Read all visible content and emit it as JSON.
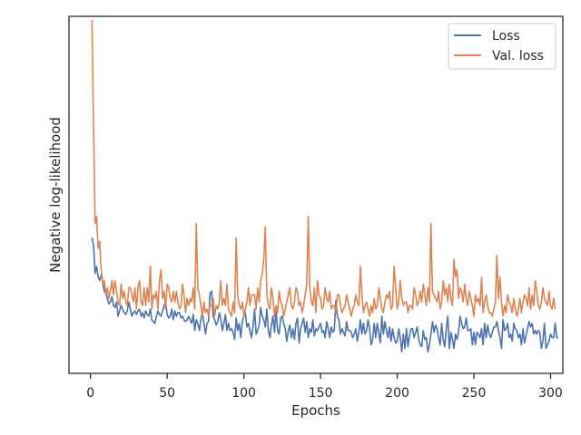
{
  "chart_data": {
    "type": "line",
    "title": "",
    "xlabel": "Epochs",
    "ylabel": "Negative log-likelihood",
    "xlim": [
      -14,
      308
    ],
    "ylim": [
      0,
      1
    ],
    "x_ticks": [
      "0",
      "50",
      "100",
      "150",
      "200",
      "250",
      "300"
    ],
    "y_ticks_shown": false,
    "grid": false,
    "legend": "top-right",
    "x_count": 293,
    "series": [
      {
        "name": "Loss",
        "color": "#4c72b0",
        "values": [
          0.38,
          0.36,
          0.28,
          0.3,
          0.27,
          0.26,
          0.275,
          0.255,
          0.23,
          0.225,
          0.21,
          0.195,
          0.2,
          0.215,
          0.19,
          0.185,
          0.2,
          0.16,
          0.175,
          0.19,
          0.18,
          0.17,
          0.165,
          0.175,
          0.2,
          0.18,
          0.16,
          0.17,
          0.175,
          0.165,
          0.175,
          0.18,
          0.16,
          0.17,
          0.155,
          0.175,
          0.165,
          0.16,
          0.18,
          0.15,
          0.145,
          0.14,
          0.16,
          0.175,
          0.165,
          0.16,
          0.175,
          0.19,
          0.2,
          0.165,
          0.155,
          0.16,
          0.18,
          0.15,
          0.175,
          0.16,
          0.17,
          0.17,
          0.155,
          0.16,
          0.15,
          0.145,
          0.15,
          0.16,
          0.15,
          0.14,
          0.165,
          0.12,
          0.15,
          0.14,
          0.12,
          0.15,
          0.17,
          0.14,
          0.11,
          0.14,
          0.145,
          0.225,
          0.23,
          0.16,
          0.15,
          0.135,
          0.145,
          0.17,
          0.15,
          0.12,
          0.14,
          0.165,
          0.12,
          0.14,
          0.12,
          0.125,
          0.115,
          0.095,
          0.155,
          0.12,
          0.14,
          0.1,
          0.145,
          0.16,
          0.17,
          0.13,
          0.14,
          0.12,
          0.1,
          0.13,
          0.18,
          0.11,
          0.12,
          0.135,
          0.185,
          0.16,
          0.15,
          0.13,
          0.18,
          0.12,
          0.1,
          0.135,
          0.16,
          0.115,
          0.18,
          0.12,
          0.11,
          0.155,
          0.16,
          0.14,
          0.125,
          0.09,
          0.12,
          0.135,
          0.1,
          0.125,
          0.095,
          0.14,
          0.155,
          0.085,
          0.125,
          0.14,
          0.155,
          0.115,
          0.145,
          0.1,
          0.125,
          0.115,
          0.15,
          0.105,
          0.125,
          0.12,
          0.13,
          0.14,
          0.115,
          0.12,
          0.1,
          0.145,
          0.125,
          0.1,
          0.13,
          0.115,
          0.12,
          0.205,
          0.16,
          0.15,
          0.11,
          0.125,
          0.115,
          0.105,
          0.145,
          0.12,
          0.12,
          0.115,
          0.1,
          0.11,
          0.125,
          0.09,
          0.115,
          0.15,
          0.11,
          0.14,
          0.11,
          0.12,
          0.15,
          0.125,
          0.08,
          0.095,
          0.14,
          0.1,
          0.14,
          0.115,
          0.085,
          0.16,
          0.11,
          0.145,
          0.12,
          0.1,
          0.13,
          0.09,
          0.125,
          0.1,
          0.085,
          0.09,
          0.125,
          0.1,
          0.06,
          0.11,
          0.07,
          0.125,
          0.075,
          0.105,
          0.125,
          0.125,
          0.1,
          0.115,
          0.13,
          0.095,
          0.08,
          0.075,
          0.12,
          0.095,
          0.1,
          0.06,
          0.08,
          0.11,
          0.145,
          0.115,
          0.135,
          0.125,
          0.1,
          0.08,
          0.14,
          0.095,
          0.075,
          0.125,
          0.16,
          0.07,
          0.115,
          0.095,
          0.07,
          0.11,
          0.095,
          0.115,
          0.16,
          0.14,
          0.125,
          0.13,
          0.155,
          0.12,
          0.12,
          0.125,
          0.08,
          0.115,
          0.08,
          0.115,
          0.11,
          0.1,
          0.125,
          0.08,
          0.14,
          0.1,
          0.135,
          0.11,
          0.1,
          0.115,
          0.13,
          0.13,
          0.145,
          0.12,
          0.1,
          0.07,
          0.15,
          0.12,
          0.125,
          0.14,
          0.1,
          0.11,
          0.09,
          0.14,
          0.125,
          0.12,
          0.1,
          0.11,
          0.08,
          0.125,
          0.085,
          0.105,
          0.125,
          0.145,
          0.13,
          0.14,
          0.11,
          0.12,
          0.11,
          0.12,
          0.115,
          0.07,
          0.09,
          0.14,
          0.07,
          0.08,
          0.09,
          0.11,
          0.1,
          0.1,
          0.14,
          0.1,
          0.1
        ]
      },
      {
        "name": "Val. loss",
        "color": "#dd8452",
        "values": [
          0.99,
          0.7,
          0.42,
          0.44,
          0.35,
          0.37,
          0.29,
          0.25,
          0.26,
          0.22,
          0.24,
          0.21,
          0.23,
          0.26,
          0.22,
          0.26,
          0.23,
          0.2,
          0.19,
          0.25,
          0.21,
          0.23,
          0.2,
          0.19,
          0.24,
          0.24,
          0.22,
          0.2,
          0.24,
          0.18,
          0.24,
          0.26,
          0.2,
          0.19,
          0.24,
          0.19,
          0.24,
          0.2,
          0.3,
          0.18,
          0.22,
          0.21,
          0.23,
          0.18,
          0.26,
          0.29,
          0.21,
          0.23,
          0.18,
          0.25,
          0.24,
          0.21,
          0.2,
          0.23,
          0.2,
          0.23,
          0.2,
          0.18,
          0.19,
          0.25,
          0.22,
          0.17,
          0.21,
          0.19,
          0.21,
          0.2,
          0.24,
          0.18,
          0.42,
          0.24,
          0.22,
          0.19,
          0.16,
          0.2,
          0.17,
          0.18,
          0.16,
          0.19,
          0.19,
          0.21,
          0.16,
          0.19,
          0.18,
          0.2,
          0.26,
          0.19,
          0.21,
          0.19,
          0.25,
          0.18,
          0.17,
          0.16,
          0.2,
          0.17,
          0.38,
          0.22,
          0.19,
          0.18,
          0.2,
          0.16,
          0.18,
          0.2,
          0.24,
          0.19,
          0.22,
          0.22,
          0.22,
          0.18,
          0.24,
          0.2,
          0.26,
          0.28,
          0.32,
          0.41,
          0.22,
          0.19,
          0.18,
          0.24,
          0.21,
          0.16,
          0.19,
          0.17,
          0.23,
          0.2,
          0.19,
          0.16,
          0.18,
          0.2,
          0.22,
          0.24,
          0.19,
          0.18,
          0.2,
          0.24,
          0.23,
          0.19,
          0.2,
          0.17,
          0.19,
          0.22,
          0.25,
          0.44,
          0.24,
          0.2,
          0.19,
          0.24,
          0.17,
          0.26,
          0.22,
          0.21,
          0.18,
          0.19,
          0.24,
          0.21,
          0.2,
          0.23,
          0.18,
          0.19,
          0.19,
          0.17,
          0.22,
          0.22,
          0.19,
          0.17,
          0.18,
          0.19,
          0.22,
          0.2,
          0.18,
          0.16,
          0.18,
          0.19,
          0.22,
          0.2,
          0.19,
          0.3,
          0.22,
          0.17,
          0.19,
          0.2,
          0.18,
          0.16,
          0.19,
          0.17,
          0.21,
          0.18,
          0.19,
          0.24,
          0.21,
          0.18,
          0.17,
          0.2,
          0.22,
          0.21,
          0.23,
          0.18,
          0.19,
          0.3,
          0.24,
          0.18,
          0.2,
          0.26,
          0.21,
          0.19,
          0.2,
          0.2,
          0.17,
          0.19,
          0.19,
          0.18,
          0.24,
          0.22,
          0.19,
          0.2,
          0.23,
          0.2,
          0.25,
          0.22,
          0.19,
          0.24,
          0.2,
          0.42,
          0.23,
          0.22,
          0.21,
          0.2,
          0.23,
          0.18,
          0.2,
          0.26,
          0.22,
          0.24,
          0.2,
          0.25,
          0.21,
          0.19,
          0.32,
          0.27,
          0.29,
          0.21,
          0.24,
          0.23,
          0.2,
          0.25,
          0.21,
          0.19,
          0.23,
          0.21,
          0.19,
          0.16,
          0.22,
          0.2,
          0.21,
          0.19,
          0.27,
          0.17,
          0.2,
          0.22,
          0.19,
          0.17,
          0.17,
          0.16,
          0.18,
          0.2,
          0.33,
          0.21,
          0.27,
          0.2,
          0.16,
          0.19,
          0.17,
          0.22,
          0.2,
          0.19,
          0.17,
          0.21,
          0.18,
          0.16,
          0.18,
          0.21,
          0.17,
          0.2,
          0.22,
          0.21,
          0.19,
          0.24,
          0.18,
          0.22,
          0.19,
          0.26,
          0.23,
          0.19,
          0.18,
          0.2,
          0.24,
          0.21,
          0.2,
          0.19,
          0.23,
          0.19,
          0.18,
          0.21,
          0.18
        ]
      }
    ]
  }
}
